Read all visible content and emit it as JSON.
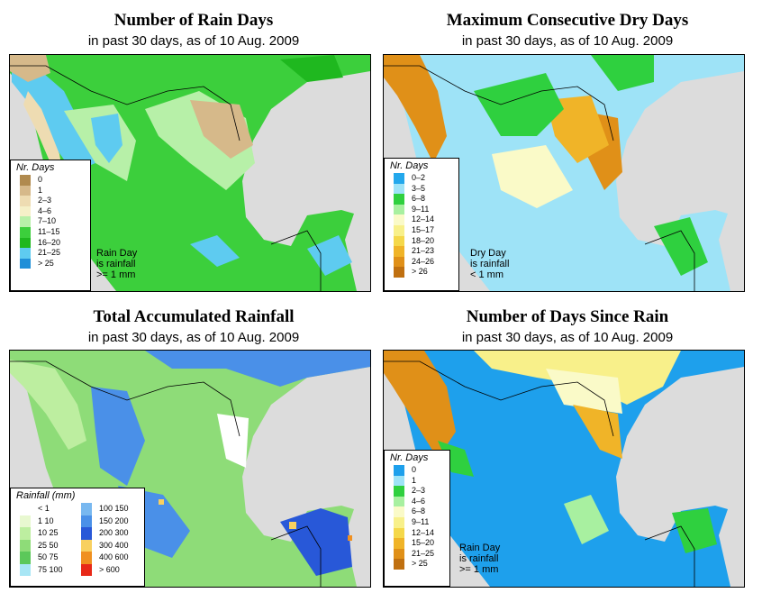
{
  "panels": [
    {
      "title": "Number of Rain Days",
      "subtitle": "in past 30 days, as of  10 Aug. 2009",
      "legend_title": "Nr. Days",
      "legend": [
        {
          "label": "0",
          "color": "#b08a4e"
        },
        {
          "label": "1",
          "color": "#d6b98a"
        },
        {
          "label": "2–3",
          "color": "#eedcb2"
        },
        {
          "label": "4–6",
          "color": "#f5f0c8"
        },
        {
          "label": "7–10",
          "color": "#b7f0a8"
        },
        {
          "label": "11–15",
          "color": "#3ccf3c"
        },
        {
          "label": "16–20",
          "color": "#1fb81f"
        },
        {
          "label": "21–25",
          "color": "#5ecbf0"
        },
        {
          "label": "> 25",
          "color": "#1f8fd8"
        }
      ],
      "note": [
        "Rain Day",
        "is rainfall",
        ">= 1 mm"
      ]
    },
    {
      "title": "Maximum Consecutive Dry Days",
      "subtitle": "in past 30 days, as of  10 Aug. 2009",
      "legend_title": "Nr. Days",
      "legend": [
        {
          "label": "0–2",
          "color": "#23a8ec"
        },
        {
          "label": "3–5",
          "color": "#9ee3f7"
        },
        {
          "label": "6–8",
          "color": "#2fd03f"
        },
        {
          "label": "9–11",
          "color": "#a8f0a0"
        },
        {
          "label": "12–14",
          "color": "#fafac8"
        },
        {
          "label": "15–17",
          "color": "#f8f08a"
        },
        {
          "label": "18–20",
          "color": "#f5d84a"
        },
        {
          "label": "21–23",
          "color": "#f0b428"
        },
        {
          "label": "24–26",
          "color": "#e09018"
        },
        {
          "label": "> 26",
          "color": "#c07010"
        }
      ],
      "note": [
        "Dry Day",
        "is rainfall",
        "< 1 mm"
      ]
    },
    {
      "title": "Total Accumulated Rainfall",
      "subtitle": "in past 30 days, as of  10 Aug. 2009",
      "legend_title": "Rainfall (mm)",
      "legend_left": [
        {
          "label": "< 1",
          "color": "#ffffff"
        },
        {
          "label": "1   10",
          "color": "#e8f8d0"
        },
        {
          "label": "10   25",
          "color": "#bdeea0"
        },
        {
          "label": "25   50",
          "color": "#8edc78"
        },
        {
          "label": "50   75",
          "color": "#5cc85a"
        },
        {
          "label": "75   100",
          "color": "#a8e6f5"
        }
      ],
      "legend_right": [
        {
          "label": "100  150",
          "color": "#78b8f0"
        },
        {
          "label": "150  200",
          "color": "#4a90e8"
        },
        {
          "label": "200  300",
          "color": "#2858d8"
        },
        {
          "label": "300  400",
          "color": "#f8d060"
        },
        {
          "label": "400  600",
          "color": "#f09020"
        },
        {
          "label": "> 600",
          "color": "#e82818"
        }
      ]
    },
    {
      "title": "Number of Days Since Rain",
      "subtitle": "in past 30 days, as of  10 Aug. 2009",
      "legend_title": "Nr. Days",
      "legend": [
        {
          "label": "0",
          "color": "#1ea0ec"
        },
        {
          "label": "1",
          "color": "#9ee3f7"
        },
        {
          "label": "2–3",
          "color": "#2fd03f"
        },
        {
          "label": "4–6",
          "color": "#a8f0a0"
        },
        {
          "label": "6–8",
          "color": "#fafac8"
        },
        {
          "label": "9–11",
          "color": "#f8f08a"
        },
        {
          "label": "12–14",
          "color": "#f5d84a"
        },
        {
          "label": "15–20",
          "color": "#f0b428"
        },
        {
          "label": "21–25",
          "color": "#e09018"
        },
        {
          "label": "> 25",
          "color": "#c07010"
        }
      ],
      "note": [
        "Rain Day",
        "is rainfall",
        ">= 1 mm"
      ]
    }
  ]
}
